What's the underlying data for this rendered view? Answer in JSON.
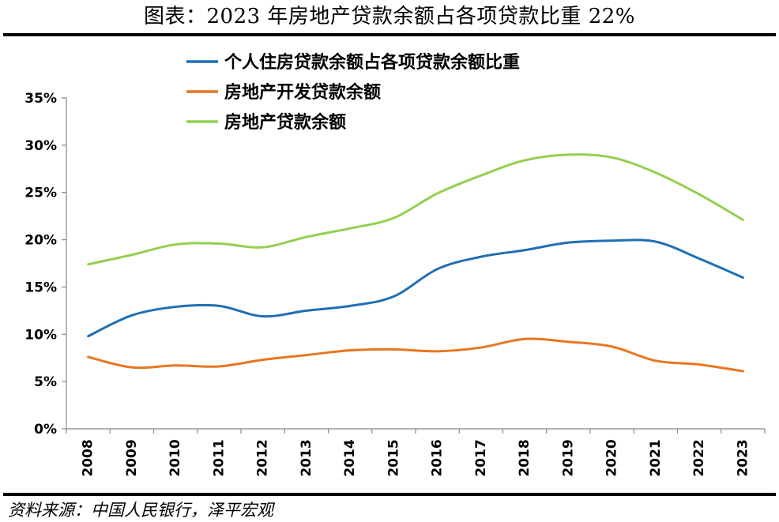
{
  "header": {
    "title": "图表：2023 年房地产贷款余额占各项贷款比重 22%"
  },
  "footer": {
    "source": "资料来源：中国人民银行，泽平宏观"
  },
  "chart_data": {
    "type": "line",
    "title": "图表：2023 年房地产贷款余额占各项贷款比重 22%",
    "xlabel": "",
    "ylabel": "",
    "x": [
      "2008",
      "2009",
      "2010",
      "2011",
      "2012",
      "2013",
      "2014",
      "2015",
      "2016",
      "2017",
      "2018",
      "2019",
      "2020",
      "2021",
      "2022",
      "2023"
    ],
    "ylim": [
      0,
      35
    ],
    "yticks": [
      "0%",
      "5%",
      "10%",
      "15%",
      "20%",
      "25%",
      "30%",
      "35%"
    ],
    "y_tick_values": [
      0,
      5,
      10,
      15,
      20,
      25,
      30,
      35
    ],
    "grid": false,
    "legend_position": "top-left",
    "series": [
      {
        "name": "个人住房贷款余额占各项贷款余额比重",
        "color": "#1f6fb4",
        "values": [
          9.8,
          12.0,
          12.9,
          13.0,
          11.9,
          12.5,
          13.0,
          14.0,
          16.9,
          18.2,
          18.9,
          19.7,
          19.9,
          19.8,
          18.0,
          16.0
        ]
      },
      {
        "name": "房地产开发贷款余额",
        "color": "#e8761f",
        "values": [
          7.6,
          6.5,
          6.7,
          6.6,
          7.3,
          7.8,
          8.3,
          8.4,
          8.2,
          8.6,
          9.5,
          9.2,
          8.7,
          7.2,
          6.8,
          6.1
        ]
      },
      {
        "name": "房地产贷款余额",
        "color": "#92d050",
        "values": [
          17.4,
          18.4,
          19.5,
          19.6,
          19.2,
          20.3,
          21.2,
          22.3,
          24.9,
          26.8,
          28.4,
          29.0,
          28.7,
          27.1,
          24.8,
          22.1
        ]
      }
    ]
  }
}
